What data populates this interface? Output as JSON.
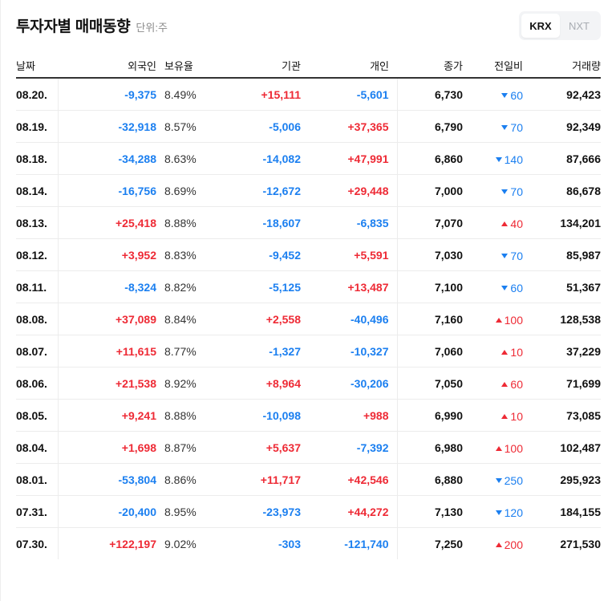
{
  "header": {
    "title": "투자자별 매매동향",
    "unit": "단위:주"
  },
  "market_toggle": {
    "options": [
      {
        "label": "KRX",
        "active": true
      },
      {
        "label": "NXT",
        "active": false
      }
    ]
  },
  "colors": {
    "up": "#ee2a35",
    "down": "#1b7ff0",
    "text": "#111111"
  },
  "table": {
    "columns": [
      "날짜",
      "외국인",
      "보유율",
      "기관",
      "개인",
      "종가",
      "전일비",
      "거래량"
    ],
    "rows": [
      {
        "date": "08.20.",
        "foreign": "-9,375",
        "foreign_dir": "down",
        "ratio": "8.49%",
        "inst": "+15,111",
        "inst_dir": "up",
        "indiv": "-5,601",
        "indiv_dir": "down",
        "close": "6,730",
        "change": "60",
        "change_dir": "down",
        "volume": "92,423"
      },
      {
        "date": "08.19.",
        "foreign": "-32,918",
        "foreign_dir": "down",
        "ratio": "8.57%",
        "inst": "-5,006",
        "inst_dir": "down",
        "indiv": "+37,365",
        "indiv_dir": "up",
        "close": "6,790",
        "change": "70",
        "change_dir": "down",
        "volume": "92,349"
      },
      {
        "date": "08.18.",
        "foreign": "-34,288",
        "foreign_dir": "down",
        "ratio": "8.63%",
        "inst": "-14,082",
        "inst_dir": "down",
        "indiv": "+47,991",
        "indiv_dir": "up",
        "close": "6,860",
        "change": "140",
        "change_dir": "down",
        "volume": "87,666"
      },
      {
        "date": "08.14.",
        "foreign": "-16,756",
        "foreign_dir": "down",
        "ratio": "8.69%",
        "inst": "-12,672",
        "inst_dir": "down",
        "indiv": "+29,448",
        "indiv_dir": "up",
        "close": "7,000",
        "change": "70",
        "change_dir": "down",
        "volume": "86,678"
      },
      {
        "date": "08.13.",
        "foreign": "+25,418",
        "foreign_dir": "up",
        "ratio": "8.88%",
        "inst": "-18,607",
        "inst_dir": "down",
        "indiv": "-6,835",
        "indiv_dir": "down",
        "close": "7,070",
        "change": "40",
        "change_dir": "up",
        "volume": "134,201"
      },
      {
        "date": "08.12.",
        "foreign": "+3,952",
        "foreign_dir": "up",
        "ratio": "8.83%",
        "inst": "-9,452",
        "inst_dir": "down",
        "indiv": "+5,591",
        "indiv_dir": "up",
        "close": "7,030",
        "change": "70",
        "change_dir": "down",
        "volume": "85,987"
      },
      {
        "date": "08.11.",
        "foreign": "-8,324",
        "foreign_dir": "down",
        "ratio": "8.82%",
        "inst": "-5,125",
        "inst_dir": "down",
        "indiv": "+13,487",
        "indiv_dir": "up",
        "close": "7,100",
        "change": "60",
        "change_dir": "down",
        "volume": "51,367"
      },
      {
        "date": "08.08.",
        "foreign": "+37,089",
        "foreign_dir": "up",
        "ratio": "8.84%",
        "inst": "+2,558",
        "inst_dir": "up",
        "indiv": "-40,496",
        "indiv_dir": "down",
        "close": "7,160",
        "change": "100",
        "change_dir": "up",
        "volume": "128,538"
      },
      {
        "date": "08.07.",
        "foreign": "+11,615",
        "foreign_dir": "up",
        "ratio": "8.77%",
        "inst": "-1,327",
        "inst_dir": "down",
        "indiv": "-10,327",
        "indiv_dir": "down",
        "close": "7,060",
        "change": "10",
        "change_dir": "up",
        "volume": "37,229"
      },
      {
        "date": "08.06.",
        "foreign": "+21,538",
        "foreign_dir": "up",
        "ratio": "8.92%",
        "inst": "+8,964",
        "inst_dir": "up",
        "indiv": "-30,206",
        "indiv_dir": "down",
        "close": "7,050",
        "change": "60",
        "change_dir": "up",
        "volume": "71,699"
      },
      {
        "date": "08.05.",
        "foreign": "+9,241",
        "foreign_dir": "up",
        "ratio": "8.88%",
        "inst": "-10,098",
        "inst_dir": "down",
        "indiv": "+988",
        "indiv_dir": "up",
        "close": "6,990",
        "change": "10",
        "change_dir": "up",
        "volume": "73,085"
      },
      {
        "date": "08.04.",
        "foreign": "+1,698",
        "foreign_dir": "up",
        "ratio": "8.87%",
        "inst": "+5,637",
        "inst_dir": "up",
        "indiv": "-7,392",
        "indiv_dir": "down",
        "close": "6,980",
        "change": "100",
        "change_dir": "up",
        "volume": "102,487"
      },
      {
        "date": "08.01.",
        "foreign": "-53,804",
        "foreign_dir": "down",
        "ratio": "8.86%",
        "inst": "+11,717",
        "inst_dir": "up",
        "indiv": "+42,546",
        "indiv_dir": "up",
        "close": "6,880",
        "change": "250",
        "change_dir": "down",
        "volume": "295,923"
      },
      {
        "date": "07.31.",
        "foreign": "-20,400",
        "foreign_dir": "down",
        "ratio": "8.95%",
        "inst": "-23,973",
        "inst_dir": "down",
        "indiv": "+44,272",
        "indiv_dir": "up",
        "close": "7,130",
        "change": "120",
        "change_dir": "down",
        "volume": "184,155"
      },
      {
        "date": "07.30.",
        "foreign": "+122,197",
        "foreign_dir": "up",
        "ratio": "9.02%",
        "inst": "-303",
        "inst_dir": "down",
        "indiv": "-121,740",
        "indiv_dir": "down",
        "close": "7,250",
        "change": "200",
        "change_dir": "up",
        "volume": "271,530"
      }
    ]
  }
}
